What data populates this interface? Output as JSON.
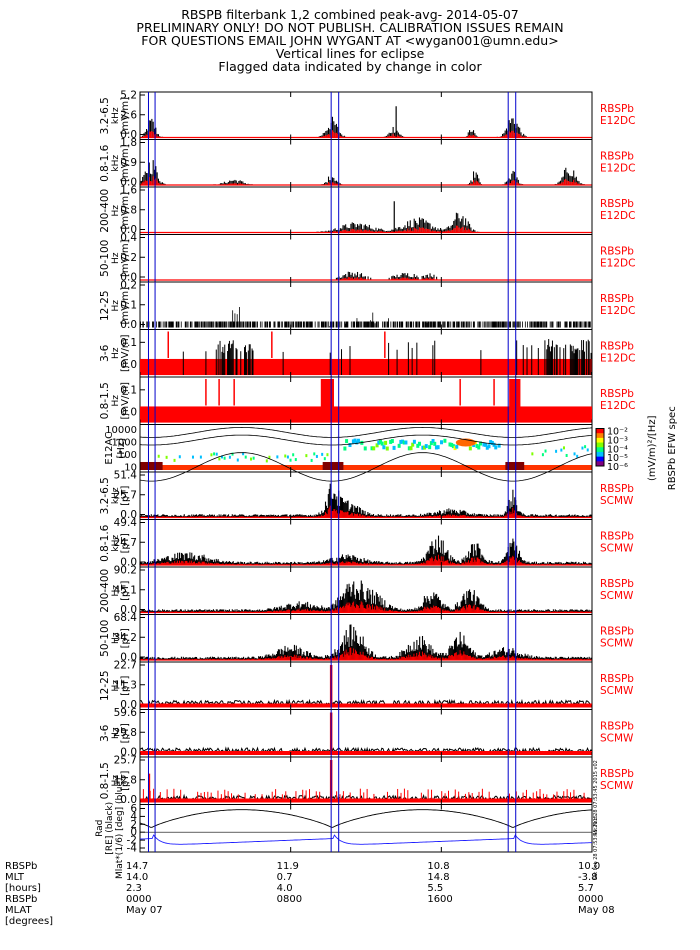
{
  "header": {
    "lines": [
      "RBSPB filterbank 1,2 combined peak-avg- 2014-05-07",
      "PRELIMINARY ONLY! DO NOT PUBLISH. CALIBRATION ISSUES REMAIN",
      "FOR QUESTIONS EMAIL JOHN WYGANT AT <wygan001@umn.edu>",
      "Vertical lines for eclipse",
      "Flagged data indicated by change in color"
    ]
  },
  "colors": {
    "peak": "#000000",
    "avg": "#ff0000",
    "eclipse": "#0000cc",
    "label": "#ff0000",
    "trace": "#2020ff"
  },
  "eclipse_times_hours": [
    0.45,
    0.8,
    10.15,
    10.55,
    19.55,
    19.95
  ],
  "panels": [
    {
      "band": "3.2-6.5",
      "unit": "kHz",
      "qty": "[mV/m]",
      "ticks": [
        "5.2",
        "2.6",
        "0.0"
      ],
      "ymax": 5.2,
      "label1": "RBSPb",
      "label2": "E12DC",
      "sensor": "E12DC"
    },
    {
      "band": "0.8-1.6",
      "unit": "kHz",
      "qty": "[mV/m]",
      "ticks": [
        "1.8",
        "0.9",
        "0.0"
      ],
      "ymax": 1.8,
      "label1": "RBSPb",
      "label2": "E12DC",
      "sensor": "E12DC"
    },
    {
      "band": "200-400",
      "unit": "Hz",
      "qty": "[mV/m]",
      "ticks": [
        "1.6",
        "0.8",
        "0.0"
      ],
      "ymax": 1.6,
      "label1": "RBSPb",
      "label2": "E12DC",
      "sensor": "E12DC"
    },
    {
      "band": "50-100",
      "unit": "Hz",
      "qty": "[mV/m]",
      "ticks": [
        "0.4",
        "0.2",
        "0.0"
      ],
      "ymax": 0.4,
      "label1": "RBSPb",
      "label2": "E12DC",
      "sensor": "E12DC"
    },
    {
      "band": "12-25",
      "unit": "Hz",
      "qty": "[mV/m]",
      "ticks": [
        "0.2",
        "0.1",
        "0.0"
      ],
      "ymax": 0.2,
      "label1": "RBSPb",
      "label2": "E12DC",
      "sensor": "E12DC"
    },
    {
      "band": "3-6",
      "unit": "Hz",
      "qty": "[mV/m]",
      "ticks": [
        "0.1",
        "0.0"
      ],
      "ymax": 0.12,
      "label1": "RBSPb",
      "label2": "E12DC",
      "sensor": "E12DC"
    },
    {
      "band": "0.8-1.5",
      "unit": "Hz",
      "qty": "[mV/m]",
      "ticks": [
        "0.1",
        "0.0"
      ],
      "ymax": 0.12,
      "label1": "RBSPb",
      "label2": "E12DC",
      "sensor": "E12DC"
    },
    {
      "band": "E12AC",
      "unit": "[Hz]",
      "qty": "",
      "ticks": [
        "10000",
        "1000",
        "100",
        "10"
      ],
      "ymax": 10000,
      "label1": "",
      "label2": "",
      "sensor": "spec"
    },
    {
      "band": "3.2-6.5",
      "unit": "kHz",
      "qty": "[pT]",
      "ticks": [
        "51.4",
        "25.7",
        "0.0"
      ],
      "ymax": 51.4,
      "label1": "RBSPb",
      "label2": "SCMW",
      "sensor": "SCMW"
    },
    {
      "band": "0.8-1.6",
      "unit": "kHz",
      "qty": "[pT]",
      "ticks": [
        "49.4",
        "24.7",
        "0.0"
      ],
      "ymax": 49.4,
      "label1": "RBSPb",
      "label2": "SCMW",
      "sensor": "SCMW"
    },
    {
      "band": "200-400",
      "unit": "Hz",
      "qty": "[pT]",
      "ticks": [
        "90.2",
        "45.1",
        "0.0"
      ],
      "ymax": 90.2,
      "label1": "RBSPb",
      "label2": "SCMW",
      "sensor": "SCMW"
    },
    {
      "band": "50-100",
      "unit": "Hz",
      "qty": "[pT]",
      "ticks": [
        "68.4",
        "34.2",
        "0.0"
      ],
      "ymax": 68.4,
      "label1": "RBSPb",
      "label2": "SCMW",
      "sensor": "SCMW"
    },
    {
      "band": "12-25",
      "unit": "Hz",
      "qty": "[pT]",
      "ticks": [
        "22.7",
        "11.3",
        "0.0"
      ],
      "ymax": 22.7,
      "label1": "RBSPb",
      "label2": "SCMW",
      "sensor": "SCMW"
    },
    {
      "band": "3-6",
      "unit": "Hz",
      "qty": "[pT]",
      "ticks": [
        "59.6",
        "29.8",
        "0.0"
      ],
      "ymax": 59.6,
      "label1": "RBSPb",
      "label2": "SCMW",
      "sensor": "SCMW"
    },
    {
      "band": "0.8-1.5",
      "unit": "Hz",
      "qty": "[pT]",
      "ticks": [
        "25.7",
        "12.8",
        "0.0"
      ],
      "ymax": 25.7,
      "label1": "RBSPb",
      "label2": "SCMW",
      "sensor": "SCMW"
    },
    {
      "band": "Rad",
      "unit": "[RE] (black)",
      "qty": "Mlat*(1/6) [deg] (blue)",
      "ticks": [
        "6",
        "4",
        "2",
        "0",
        "-2",
        "-4"
      ],
      "ymax": 6,
      "label1": "",
      "label2": "",
      "sensor": "orbit"
    }
  ],
  "colorbar": {
    "ticks": [
      "10⁻²",
      "10⁻³",
      "10⁻⁴",
      "10⁻⁵",
      "10⁻⁶"
    ],
    "unit": "(mV/m)²/[Hz]",
    "title": "RBSPb EFW spec",
    "colors": [
      "#7f007f",
      "#0000ff",
      "#00bfff",
      "#00ff7f",
      "#7fff00",
      "#ffff00",
      "#ff7f00",
      "#ff0000"
    ]
  },
  "stamps": {
    "p15": "Sat Feb 28 07:53:45 2015 v02",
    "p16": "Sat Feb 28 07:53:45 2015"
  },
  "xaxis": {
    "rows": [
      {
        "label": "RBSPb",
        "values": [
          "14.7",
          "11.9",
          "10.8",
          "10.0"
        ]
      },
      {
        "label": "MLT",
        "values": [
          "14.0",
          "0.7",
          "14.8",
          "-3.8"
        ]
      },
      {
        "label": "[hours]",
        "values": [
          "2.3",
          "4.0",
          "5.5",
          "5.7"
        ]
      },
      {
        "label": "RBSPb",
        "values": [
          "0000",
          "0800",
          "1600",
          "0000"
        ]
      },
      {
        "label": "MLAT",
        "values": [
          "May 07",
          "",
          "",
          "May 08"
        ]
      },
      {
        "label": "[degrees]",
        "values": [
          "",
          "",
          "",
          ""
        ]
      }
    ],
    "tick_hours": [
      0,
      8,
      16,
      24
    ]
  }
}
